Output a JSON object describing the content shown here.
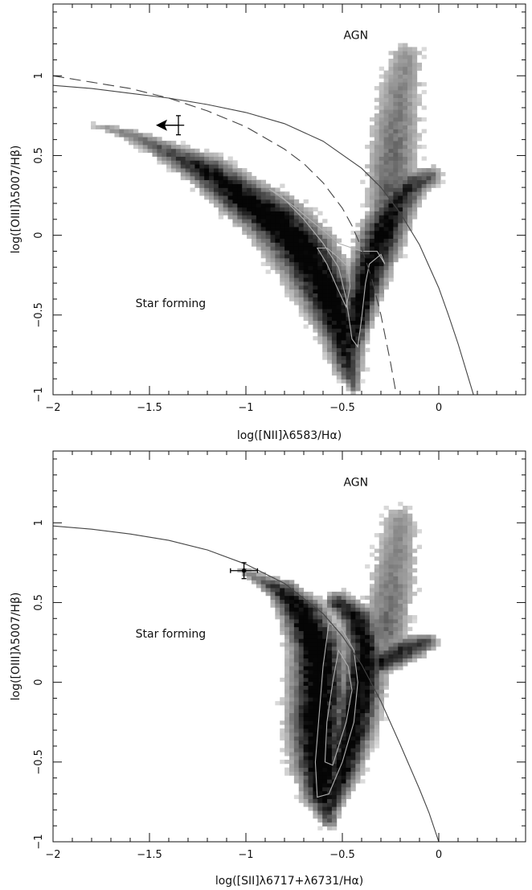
{
  "chart_data": [
    {
      "type": "scatter",
      "xlabel": "log([NII]λ6583/Hα)",
      "ylabel": "log([OIII]λ5007/Hβ)",
      "xlim": [
        -2,
        0.45
      ],
      "ylim": [
        -1,
        1.45
      ],
      "x_ticks": [
        -2,
        -1.5,
        -1,
        -0.5,
        0
      ],
      "x_tick_labels": [
        "−2",
        "−1.5",
        "−1",
        "−0.5",
        "0"
      ],
      "y_ticks": [
        -1,
        -0.5,
        0,
        0.5,
        1
      ],
      "y_tick_labels": [
        "−1",
        "−0.5",
        "0",
        "0.5",
        "1"
      ],
      "annotations": [
        {
          "text": "AGN",
          "x": -0.43,
          "y": 1.23
        },
        {
          "text": "Star forming",
          "x": -1.39,
          "y": -0.45
        }
      ],
      "curves": [
        {
          "style": "solid",
          "points": [
            [
              -2.0,
              0.94
            ],
            [
              -1.8,
              0.92
            ],
            [
              -1.6,
              0.89
            ],
            [
              -1.4,
              0.86
            ],
            [
              -1.2,
              0.82
            ],
            [
              -1.0,
              0.77
            ],
            [
              -0.8,
              0.7
            ],
            [
              -0.6,
              0.59
            ],
            [
              -0.4,
              0.42
            ],
            [
              -0.3,
              0.3
            ],
            [
              -0.2,
              0.14
            ],
            [
              -0.1,
              -0.06
            ],
            [
              0.0,
              -0.33
            ],
            [
              0.05,
              -0.5
            ],
            [
              0.1,
              -0.68
            ],
            [
              0.15,
              -0.88
            ],
            [
              0.18,
              -1.0
            ]
          ]
        },
        {
          "style": "dashed",
          "points": [
            [
              -2.0,
              1.0
            ],
            [
              -1.8,
              0.96
            ],
            [
              -1.6,
              0.92
            ],
            [
              -1.4,
              0.86
            ],
            [
              -1.2,
              0.78
            ],
            [
              -1.0,
              0.68
            ],
            [
              -0.8,
              0.54
            ],
            [
              -0.7,
              0.45
            ],
            [
              -0.6,
              0.33
            ],
            [
              -0.5,
              0.17
            ],
            [
              -0.45,
              0.06
            ],
            [
              -0.4,
              -0.08
            ],
            [
              -0.35,
              -0.26
            ],
            [
              -0.3,
              -0.5
            ],
            [
              -0.25,
              -0.8
            ],
            [
              -0.22,
              -1.0
            ]
          ]
        }
      ],
      "density_ridges": [
        {
          "points": [
            [
              -1.78,
              0.69
            ],
            [
              -1.6,
              0.63
            ],
            [
              -1.4,
              0.52
            ],
            [
              -1.2,
              0.4
            ],
            [
              -1.0,
              0.22
            ],
            [
              -0.85,
              0.1
            ],
            [
              -0.7,
              -0.1
            ],
            [
              -0.58,
              -0.35
            ],
            [
              -0.5,
              -0.6
            ],
            [
              -0.47,
              -0.82
            ],
            [
              -0.44,
              -0.96
            ]
          ],
          "width": [
            0.02,
            0.04,
            0.06,
            0.09,
            0.11,
            0.13,
            0.14,
            0.13,
            0.1,
            0.07,
            0.03
          ],
          "level": [
            0.1,
            0.2,
            0.4,
            0.7,
            0.95,
            1.0,
            1.0,
            0.95,
            0.85,
            0.55,
            0.25
          ]
        },
        {
          "points": [
            [
              -0.47,
              -0.82
            ],
            [
              -0.42,
              -0.5
            ],
            [
              -0.36,
              -0.22
            ],
            [
              -0.29,
              0.02
            ],
            [
              -0.22,
              0.2
            ],
            [
              -0.15,
              0.31
            ],
            [
              -0.05,
              0.37
            ]
          ],
          "width": [
            0.04,
            0.07,
            0.09,
            0.1,
            0.09,
            0.08,
            0.06
          ],
          "level": [
            0.55,
            0.9,
            0.9,
            0.85,
            0.7,
            0.55,
            0.35
          ]
        },
        {
          "points": [
            [
              -0.26,
              0.2
            ],
            [
              -0.24,
              0.45
            ],
            [
              -0.22,
              0.7
            ],
            [
              -0.2,
              0.92
            ],
            [
              -0.17,
              1.12
            ]
          ],
          "width": [
            0.1,
            0.12,
            0.12,
            0.11,
            0.09
          ],
          "level": [
            0.35,
            0.28,
            0.22,
            0.18,
            0.14
          ]
        }
      ],
      "contours": [
        [
          [
            -0.88,
            0.29
          ],
          [
            -0.82,
            0.25
          ],
          [
            -0.7,
            0.1
          ],
          [
            -0.6,
            -0.05
          ],
          [
            -0.52,
            -0.2
          ],
          [
            -0.48,
            -0.4
          ],
          [
            -0.45,
            -0.65
          ],
          [
            -0.42,
            -0.7
          ],
          [
            -0.4,
            -0.52
          ],
          [
            -0.38,
            -0.3
          ],
          [
            -0.36,
            -0.18
          ],
          [
            -0.3,
            -0.12
          ],
          [
            -0.28,
            -0.18
          ],
          [
            -0.32,
            -0.1
          ],
          [
            -0.4,
            -0.1
          ],
          [
            -0.52,
            -0.05
          ],
          [
            -0.62,
            0.05
          ],
          [
            -0.75,
            0.18
          ],
          [
            -0.88,
            0.29
          ]
        ],
        [
          [
            -0.63,
            -0.08
          ],
          [
            -0.58,
            -0.18
          ],
          [
            -0.53,
            -0.32
          ],
          [
            -0.48,
            -0.45
          ],
          [
            -0.46,
            -0.32
          ],
          [
            -0.47,
            -0.2
          ],
          [
            -0.52,
            -0.14
          ],
          [
            -0.58,
            -0.08
          ],
          [
            -0.63,
            -0.08
          ]
        ]
      ],
      "marker": {
        "x": -1.35,
        "y": 0.69,
        "x_err": 0.03,
        "y_err": 0.06,
        "style": "upper-limit-arrow-left"
      }
    },
    {
      "type": "scatter",
      "xlabel": "log([SII]λ6717+λ6731/Hα)",
      "ylabel": "log([OIII]λ5007/Hβ)",
      "xlim": [
        -2,
        0.45
      ],
      "ylim": [
        -1,
        1.45
      ],
      "x_ticks": [
        -2,
        -1.5,
        -1,
        -0.5,
        0
      ],
      "x_tick_labels": [
        "−2",
        "−1.5",
        "−1",
        "−0.5",
        "0"
      ],
      "y_ticks": [
        -1,
        -0.5,
        0,
        0.5,
        1
      ],
      "y_tick_labels": [
        "−1",
        "−0.5",
        "0",
        "0.5",
        "1"
      ],
      "annotations": [
        {
          "text": "AGN",
          "x": -0.43,
          "y": 1.23
        },
        {
          "text": "Star forming",
          "x": -1.39,
          "y": 0.28
        }
      ],
      "curves": [
        {
          "style": "solid",
          "points": [
            [
              -2.0,
              0.98
            ],
            [
              -1.8,
              0.96
            ],
            [
              -1.6,
              0.93
            ],
            [
              -1.4,
              0.89
            ],
            [
              -1.2,
              0.83
            ],
            [
              -1.0,
              0.74
            ],
            [
              -0.8,
              0.62
            ],
            [
              -0.6,
              0.43
            ],
            [
              -0.5,
              0.29
            ],
            [
              -0.4,
              0.11
            ],
            [
              -0.3,
              -0.12
            ],
            [
              -0.2,
              -0.39
            ],
            [
              -0.1,
              -0.67
            ],
            [
              -0.05,
              -0.82
            ],
            [
              0.0,
              -1.0
            ]
          ]
        }
      ],
      "density_ridges": [
        {
          "points": [
            [
              -1.02,
              0.7
            ],
            [
              -0.92,
              0.64
            ],
            [
              -0.8,
              0.56
            ],
            [
              -0.7,
              0.42
            ],
            [
              -0.63,
              0.22
            ],
            [
              -0.62,
              0.0
            ],
            [
              -0.63,
              -0.25
            ],
            [
              -0.62,
              -0.5
            ],
            [
              -0.6,
              -0.7
            ],
            [
              -0.57,
              -0.86
            ]
          ],
          "width": [
            0.02,
            0.04,
            0.07,
            0.1,
            0.12,
            0.13,
            0.13,
            0.12,
            0.09,
            0.05
          ],
          "level": [
            0.15,
            0.3,
            0.7,
            0.95,
            1.0,
            1.0,
            1.0,
            0.95,
            0.8,
            0.35
          ]
        },
        {
          "points": [
            [
              -0.57,
              -0.8
            ],
            [
              -0.5,
              -0.55
            ],
            [
              -0.44,
              -0.25
            ],
            [
              -0.4,
              0.0
            ],
            [
              -0.38,
              0.2
            ],
            [
              -0.42,
              0.4
            ],
            [
              -0.52,
              0.5
            ]
          ],
          "width": [
            0.05,
            0.08,
            0.1,
            0.1,
            0.09,
            0.08,
            0.06
          ],
          "level": [
            0.55,
            0.85,
            0.9,
            0.9,
            0.8,
            0.7,
            0.6
          ]
        },
        {
          "points": [
            [
              -0.3,
              0.12
            ],
            [
              -0.22,
              0.18
            ],
            [
              -0.14,
              0.22
            ],
            [
              -0.06,
              0.25
            ]
          ],
          "width": [
            0.06,
            0.07,
            0.07,
            0.05
          ],
          "level": [
            0.75,
            0.65,
            0.55,
            0.4
          ]
        },
        {
          "points": [
            [
              -0.28,
              0.3
            ],
            [
              -0.25,
              0.55
            ],
            [
              -0.22,
              0.8
            ],
            [
              -0.2,
              1.02
            ]
          ],
          "width": [
            0.11,
            0.12,
            0.11,
            0.09
          ],
          "level": [
            0.28,
            0.22,
            0.18,
            0.14
          ]
        }
      ],
      "contours": [
        [
          [
            -0.57,
            0.37
          ],
          [
            -0.5,
            0.33
          ],
          [
            -0.44,
            0.2
          ],
          [
            -0.42,
            0.0
          ],
          [
            -0.44,
            -0.25
          ],
          [
            -0.5,
            -0.5
          ],
          [
            -0.57,
            -0.7
          ],
          [
            -0.63,
            -0.72
          ],
          [
            -0.64,
            -0.5
          ],
          [
            -0.62,
            -0.2
          ],
          [
            -0.6,
            0.1
          ],
          [
            -0.57,
            0.37
          ]
        ],
        [
          [
            -0.52,
            0.2
          ],
          [
            -0.47,
            0.1
          ],
          [
            -0.45,
            -0.05
          ],
          [
            -0.48,
            -0.25
          ],
          [
            -0.55,
            -0.52
          ],
          [
            -0.59,
            -0.5
          ],
          [
            -0.58,
            -0.25
          ],
          [
            -0.55,
            0.0
          ],
          [
            -0.52,
            0.2
          ]
        ]
      ],
      "marker": {
        "x": -1.01,
        "y": 0.7,
        "x_err": 0.07,
        "y_err": 0.05,
        "style": "errorbar"
      }
    }
  ]
}
